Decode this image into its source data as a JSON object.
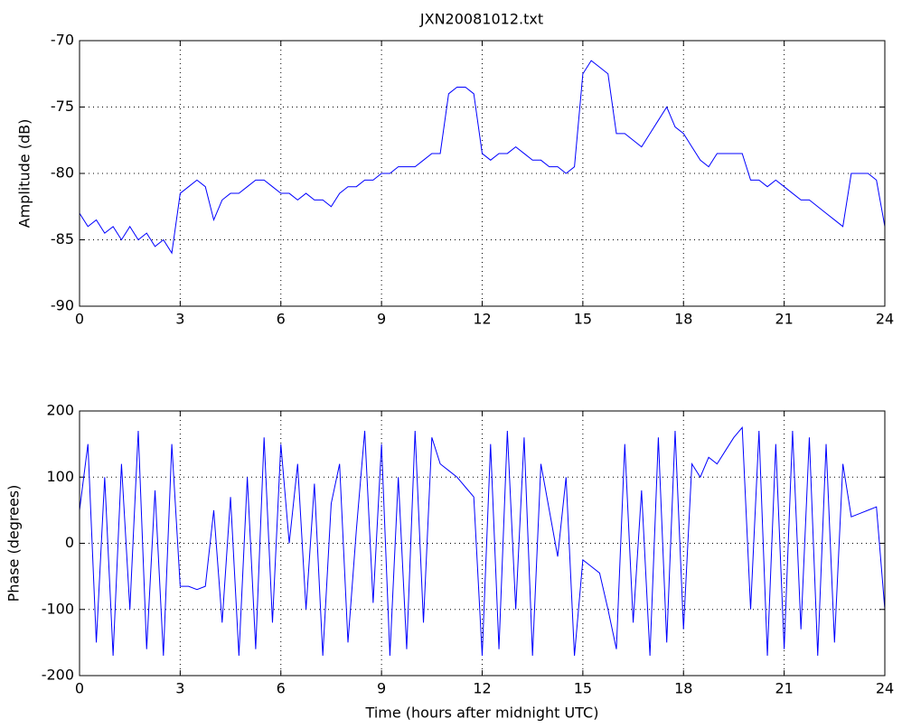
{
  "chart_data": [
    {
      "type": "line",
      "title": "JXN20081012.txt",
      "ylabel": "Amplitude (dB)",
      "x": [
        0,
        0.25,
        0.5,
        0.75,
        1,
        1.25,
        1.5,
        1.75,
        2,
        2.25,
        2.5,
        2.75,
        3,
        3.25,
        3.5,
        3.75,
        4,
        4.25,
        4.5,
        4.75,
        5,
        5.25,
        5.5,
        5.75,
        6,
        6.25,
        6.5,
        6.75,
        7,
        7.25,
        7.5,
        7.75,
        8,
        8.25,
        8.5,
        8.75,
        9,
        9.25,
        9.5,
        9.75,
        10,
        10.25,
        10.5,
        10.75,
        11,
        11.25,
        11.5,
        11.75,
        12,
        12.25,
        12.5,
        12.75,
        13,
        13.25,
        13.5,
        13.75,
        14,
        14.25,
        14.5,
        14.75,
        15,
        15.25,
        15.5,
        15.75,
        16,
        16.25,
        16.5,
        16.75,
        17,
        17.25,
        17.5,
        17.75,
        18,
        18.25,
        18.5,
        18.75,
        19,
        19.25,
        19.5,
        19.75,
        20,
        20.25,
        20.5,
        20.75,
        21,
        21.25,
        21.5,
        21.75,
        22,
        22.25,
        22.5,
        22.75,
        23,
        23.25,
        23.5,
        23.75,
        24
      ],
      "series": [
        {
          "name": "Amplitude",
          "color": "#0000ff",
          "values": [
            -83,
            -84,
            -83.5,
            -84.5,
            -84,
            -85,
            -84,
            -85,
            -84.5,
            -85.5,
            -85,
            -86,
            -81.5,
            -81,
            -80.5,
            -81,
            -83.5,
            -82,
            -81.5,
            -81.5,
            -81,
            -80.5,
            -80.5,
            -81,
            -81.5,
            -81.5,
            -82,
            -81.5,
            -82,
            -82,
            -82.5,
            -81.5,
            -81,
            -81,
            -80.5,
            -80.5,
            -80,
            -80,
            -79.5,
            -79.5,
            -79.5,
            -79,
            -78.5,
            -78.5,
            -74,
            -73.5,
            -73.5,
            -74,
            -78.5,
            -79,
            -78.5,
            -78.5,
            -78,
            -78.5,
            -79,
            -79,
            -79.5,
            -79.5,
            -80,
            -79.5,
            -72.5,
            -71.5,
            -72,
            -72.5,
            -77,
            -77,
            -77.5,
            -78,
            -77,
            -76,
            -75,
            -76.5,
            -77,
            -78,
            -79,
            -79.5,
            -78.5,
            -78.5,
            -78.5,
            -78.5,
            -80.5,
            -80.5,
            -81,
            -80.5,
            -81,
            -81.5,
            -82,
            -82,
            -82.5,
            -83,
            -83.5,
            -84,
            -80,
            -80,
            -80,
            -80.5,
            -84
          ]
        }
      ],
      "xlim": [
        0,
        24
      ],
      "xticks": [
        0,
        3,
        6,
        9,
        12,
        15,
        18,
        21,
        24
      ],
      "ylim": [
        -90,
        -70
      ],
      "yticks": [
        -90,
        -85,
        -80,
        -75,
        -70
      ],
      "grid": true
    },
    {
      "type": "line",
      "ylabel": "Phase (degrees)",
      "xlabel": "Time (hours after midnight UTC)",
      "x": [
        0,
        0.25,
        0.5,
        0.75,
        1,
        1.25,
        1.5,
        1.75,
        2,
        2.25,
        2.5,
        2.75,
        3,
        3.25,
        3.5,
        3.75,
        4,
        4.25,
        4.5,
        4.75,
        5,
        5.25,
        5.5,
        5.75,
        6,
        6.25,
        6.5,
        6.75,
        7,
        7.25,
        7.5,
        7.75,
        8,
        8.25,
        8.5,
        8.75,
        9,
        9.25,
        9.5,
        9.75,
        10,
        10.25,
        10.5,
        10.75,
        11,
        11.25,
        11.5,
        11.75,
        12,
        12.25,
        12.5,
        12.75,
        13,
        13.25,
        13.5,
        13.75,
        14,
        14.25,
        14.5,
        14.75,
        15,
        15.25,
        15.5,
        15.75,
        16,
        16.25,
        16.5,
        16.75,
        17,
        17.25,
        17.5,
        17.75,
        18,
        18.25,
        18.5,
        18.75,
        19,
        19.25,
        19.5,
        19.75,
        20,
        20.25,
        20.5,
        20.75,
        21,
        21.25,
        21.5,
        21.75,
        22,
        22.25,
        22.5,
        22.75,
        23,
        23.25,
        23.5,
        23.75,
        24
      ],
      "series": [
        {
          "name": "Phase",
          "color": "#0000ff",
          "values": [
            50,
            150,
            -150,
            100,
            -170,
            120,
            -100,
            170,
            -160,
            80,
            -170,
            150,
            -65,
            -65,
            -70,
            -65,
            50,
            -120,
            70,
            -170,
            100,
            -160,
            160,
            -120,
            150,
            0,
            120,
            -100,
            90,
            -170,
            60,
            120,
            -150,
            20,
            170,
            -90,
            150,
            -170,
            100,
            -160,
            170,
            -120,
            160,
            120,
            110,
            100,
            85,
            70,
            -170,
            150,
            -160,
            170,
            -100,
            160,
            -170,
            120,
            50,
            -20,
            100,
            -170,
            -25,
            -35,
            -45,
            -100,
            -160,
            150,
            -120,
            80,
            -170,
            160,
            -150,
            170,
            -130,
            120,
            100,
            130,
            120,
            140,
            160,
            175,
            -100,
            170,
            -170,
            150,
            -160,
            170,
            -130,
            160,
            -170,
            150,
            -150,
            120,
            40,
            45,
            50,
            55,
            -100
          ]
        }
      ],
      "xlim": [
        0,
        24
      ],
      "xticks": [
        0,
        3,
        6,
        9,
        12,
        15,
        18,
        21,
        24
      ],
      "ylim": [
        -200,
        200
      ],
      "yticks": [
        -200,
        -100,
        0,
        100,
        200
      ],
      "grid": true
    }
  ]
}
